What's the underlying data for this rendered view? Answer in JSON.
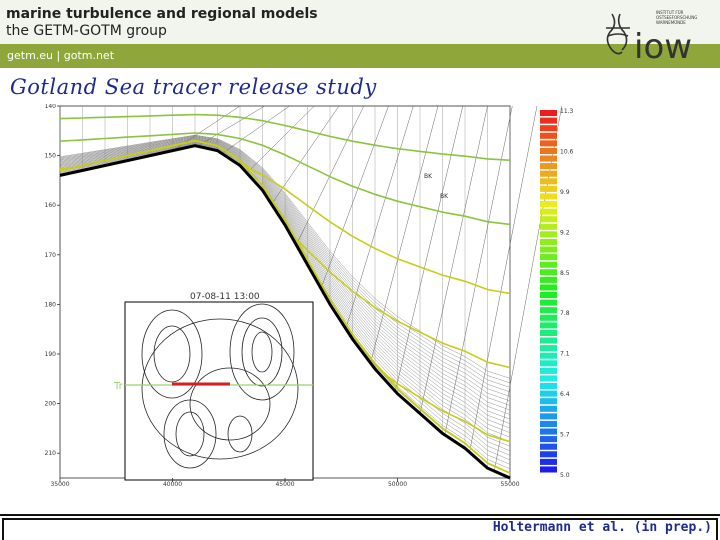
{
  "header": {
    "title": "marine turbulence and regional models",
    "subtitle": "the GETM-GOTM group",
    "links": "getm.eu  |  gotm.net",
    "logo_text": "iow",
    "logo_institute": "INSTITUT FÜR OSTSEEFORSCHUNG WARNEMÜNDE",
    "accent_color": "#8fa63a"
  },
  "slide": {
    "title": "Gotland Sea tracer release study",
    "title_color": "#1e2b8e"
  },
  "figure": {
    "inset_title": "07-08-11 13:00",
    "tracer_label": "Tr",
    "plot_label_1": "BK",
    "plot_label_2": "BK"
  },
  "chart_data": {
    "type": "line",
    "title": "",
    "xlabel": "",
    "ylabel": "",
    "x_ticks": [
      "35000",
      "40000",
      "45000",
      "50000",
      "55000"
    ],
    "y_ticks": [
      "140",
      "150",
      "160",
      "170",
      "180",
      "190",
      "200",
      "210"
    ],
    "xlim": [
      35000,
      55000
    ],
    "ylim": [
      215,
      140
    ],
    "grid": false,
    "colorbar": {
      "ticks": [
        "11.3",
        "10.6",
        "9.9",
        "9.2",
        "8.5",
        "7.8",
        "7.1",
        "6.4",
        "5.7",
        "5.0"
      ],
      "range": [
        5.0,
        11.3
      ]
    },
    "series": [
      {
        "x": [
          35000,
          37000,
          39000,
          41000,
          42000,
          43000,
          44000,
          45000,
          46000,
          47000,
          48000,
          49000,
          50000,
          51000,
          52000,
          53000,
          54000,
          55000
        ],
        "values": [
          154,
          152,
          150,
          148,
          149,
          152,
          157,
          164,
          172,
          180,
          187,
          193,
          198,
          202,
          206,
          209,
          213,
          215
        ]
      }
    ]
  },
  "footer": {
    "credit": "Holtermann et al. (in prep.)"
  }
}
